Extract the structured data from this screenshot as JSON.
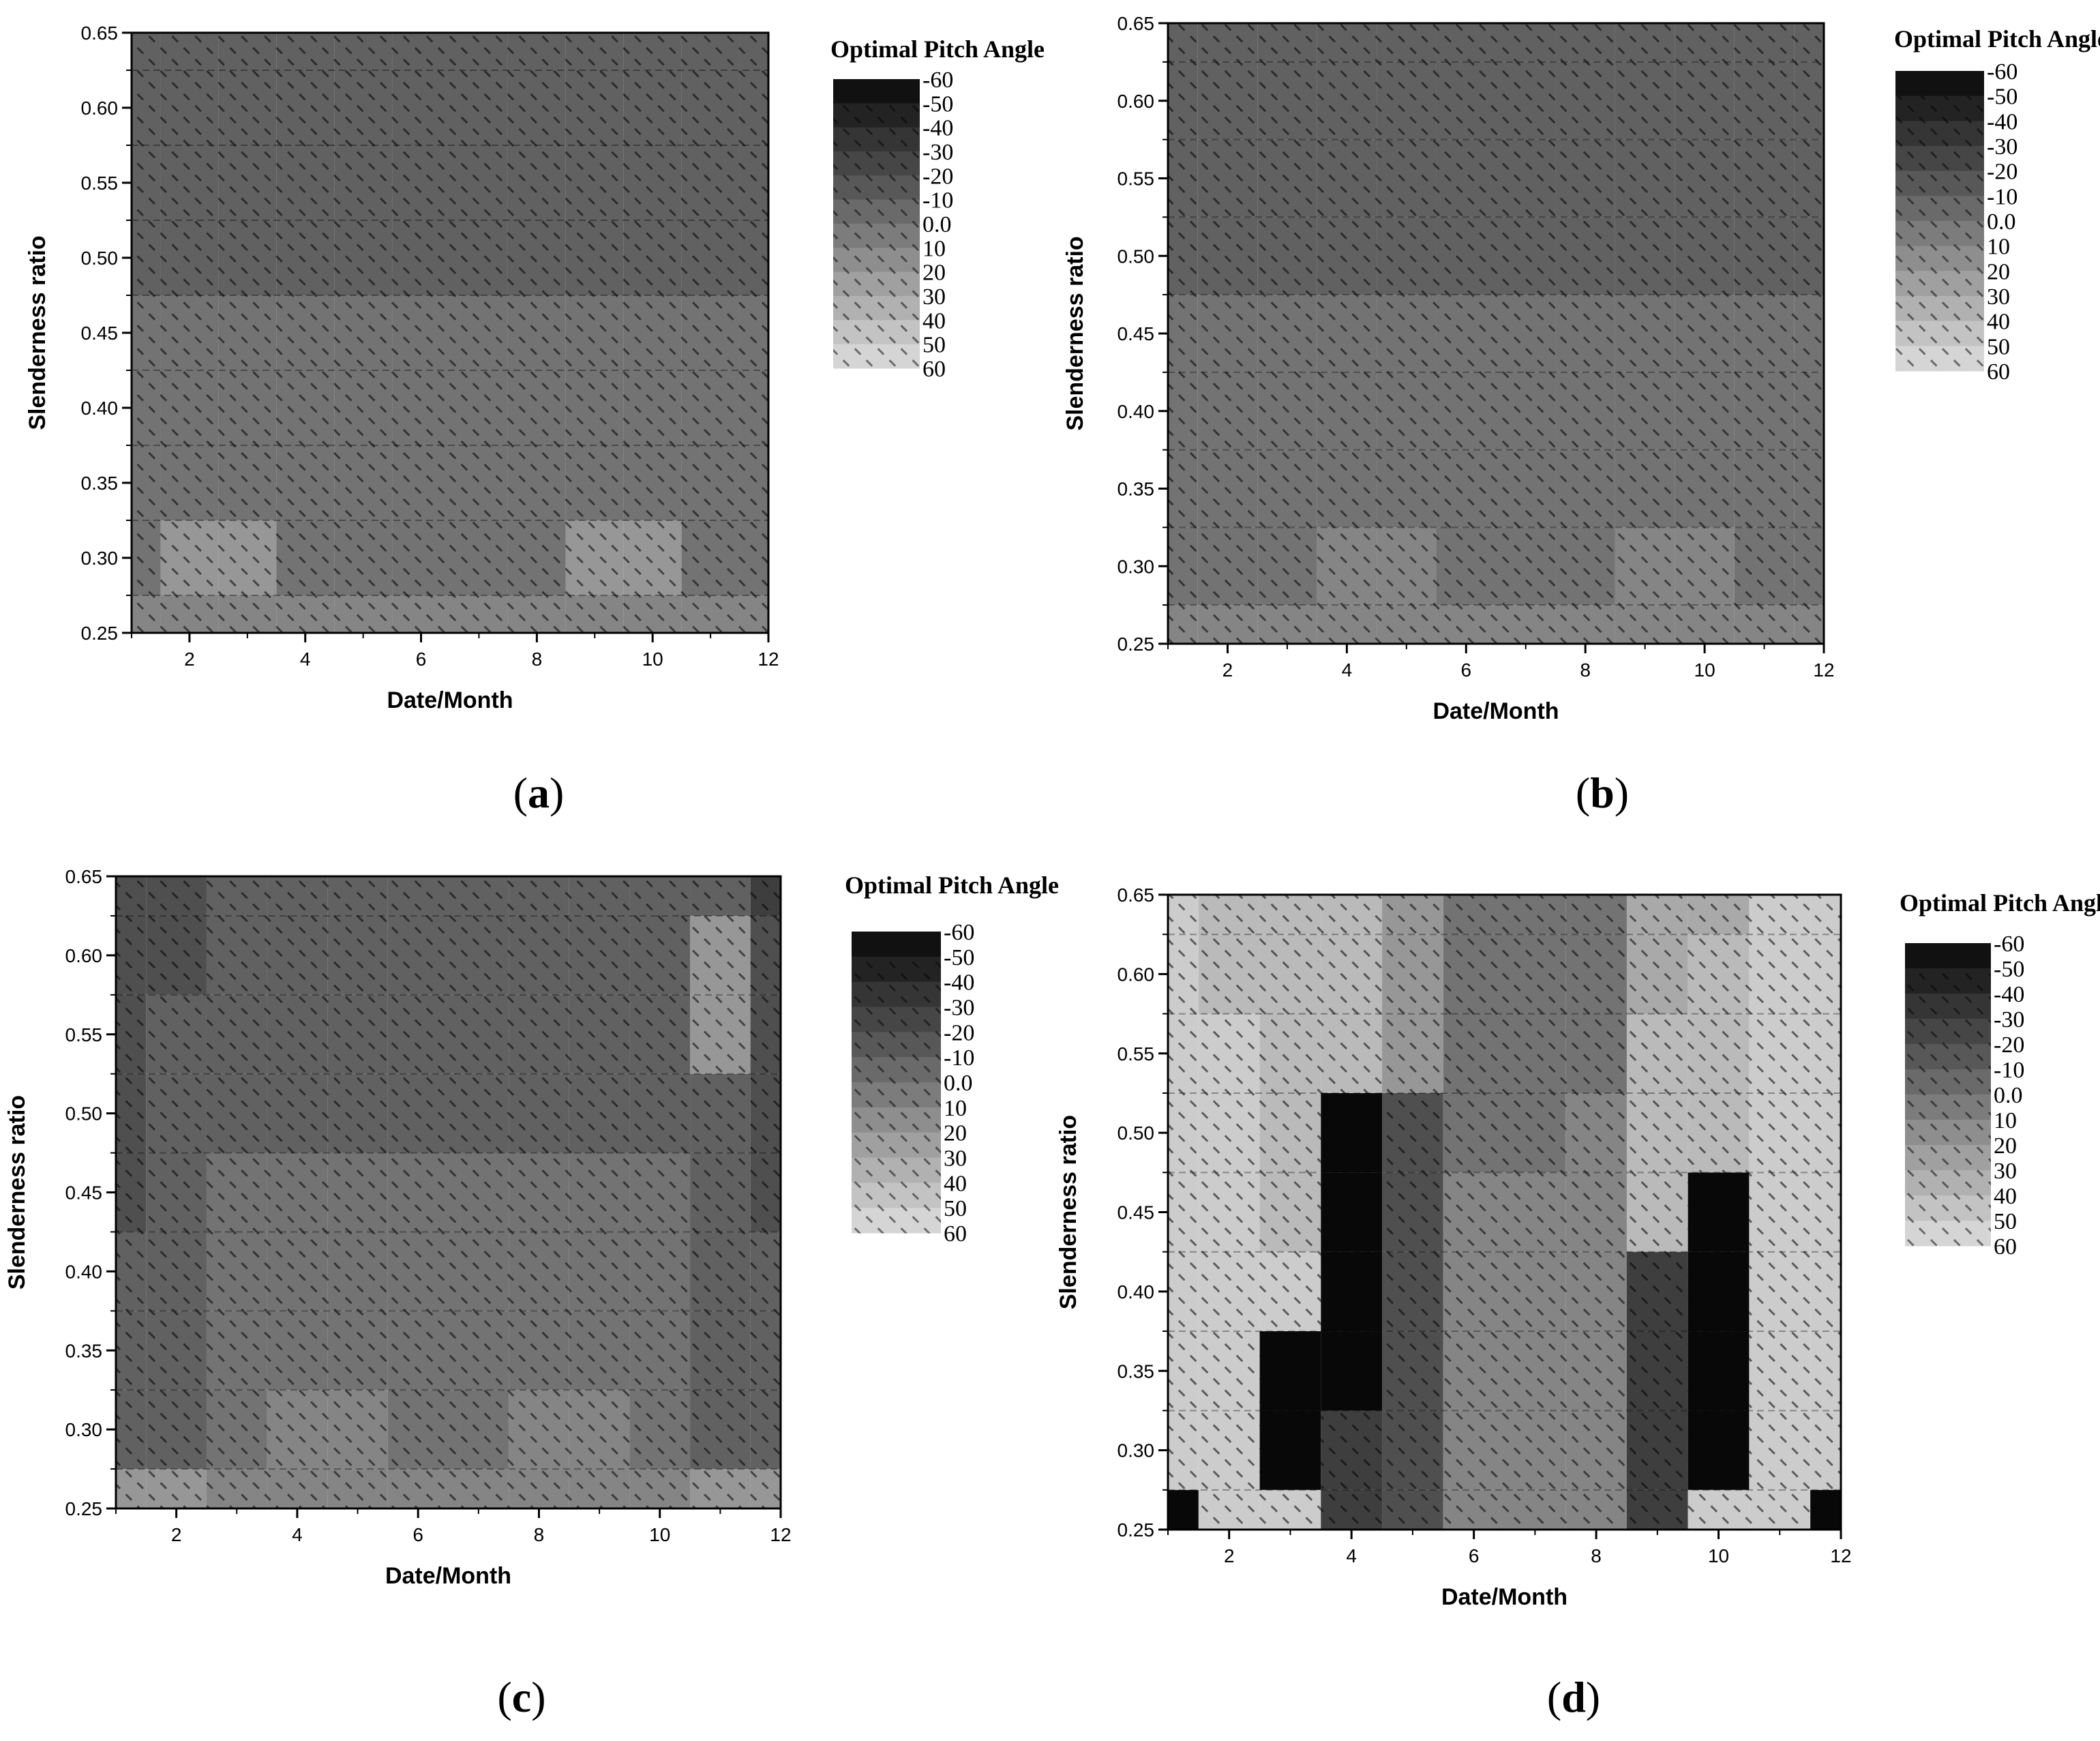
{
  "figure": {
    "panel_labels": [
      "(a)",
      "(b)",
      "(c)",
      "(d)"
    ],
    "legend_title": "Optimal Pitch Angle",
    "legend_levels": [
      -60,
      -50,
      -40,
      -30,
      -20,
      -10,
      0,
      10,
      20,
      30,
      40,
      50,
      60
    ],
    "legend_level_labels": [
      "-60",
      "-50",
      "-40",
      "-30",
      "-20",
      "-10",
      "0.0",
      "10",
      "20",
      "30",
      "40",
      "50",
      "60"
    ],
    "colors": {
      "darkest": "#050505",
      "lightest": "#dcdcdc",
      "hatch": "#000000",
      "axis": "#000000",
      "background": "#ffffff"
    }
  },
  "chart_data": [
    {
      "type": "heatmap",
      "panel": "(a)",
      "xlabel": "Date/Month",
      "ylabel": "Slenderness ratio",
      "legend_title": "Optimal Pitch Angle",
      "xlim": [
        1,
        12
      ],
      "ylim": [
        0.25,
        0.65
      ],
      "x_ticks": [
        2,
        4,
        6,
        8,
        10,
        12
      ],
      "y_ticks": [
        0.25,
        0.3,
        0.35,
        0.4,
        0.45,
        0.5,
        0.55,
        0.6,
        0.65
      ],
      "x": [
        1,
        2,
        3,
        4,
        5,
        6,
        7,
        8,
        9,
        10,
        11,
        12
      ],
      "y": [
        0.25,
        0.3,
        0.35,
        0.4,
        0.45,
        0.5,
        0.55,
        0.6,
        0.65
      ],
      "z": [
        [
          10,
          10,
          10,
          10,
          10,
          10,
          10,
          10,
          10,
          10,
          10,
          10
        ],
        [
          0,
          20,
          20,
          0,
          0,
          0,
          0,
          0,
          20,
          20,
          0,
          0
        ],
        [
          0,
          0,
          0,
          0,
          0,
          0,
          0,
          0,
          0,
          0,
          0,
          0
        ],
        [
          0,
          0,
          0,
          0,
          0,
          0,
          0,
          0,
          0,
          0,
          0,
          0
        ],
        [
          0,
          0,
          0,
          0,
          0,
          0,
          0,
          0,
          0,
          0,
          0,
          0
        ],
        [
          -10,
          -10,
          -10,
          -10,
          -10,
          -10,
          -10,
          -10,
          -10,
          -10,
          -10,
          -10
        ],
        [
          -10,
          -10,
          -10,
          -10,
          -10,
          -10,
          -10,
          -10,
          -10,
          -10,
          -10,
          -10
        ],
        [
          -10,
          -10,
          -10,
          -10,
          -10,
          -10,
          -10,
          -10,
          -10,
          -10,
          -10,
          -10
        ],
        [
          -10,
          -10,
          -10,
          -10,
          -10,
          -10,
          -10,
          -10,
          -10,
          -10,
          -10,
          -10
        ]
      ]
    },
    {
      "type": "heatmap",
      "panel": "(b)",
      "xlabel": "Date/Month",
      "ylabel": "Slenderness ratio",
      "legend_title": "Optimal Pitch Angle",
      "xlim": [
        1,
        12
      ],
      "ylim": [
        0.25,
        0.65
      ],
      "x_ticks": [
        2,
        4,
        6,
        8,
        10,
        12
      ],
      "y_ticks": [
        0.25,
        0.3,
        0.35,
        0.4,
        0.45,
        0.5,
        0.55,
        0.6,
        0.65
      ],
      "x": [
        1,
        2,
        3,
        4,
        5,
        6,
        7,
        8,
        9,
        10,
        11,
        12
      ],
      "y": [
        0.25,
        0.3,
        0.35,
        0.4,
        0.45,
        0.5,
        0.55,
        0.6,
        0.65
      ],
      "z": [
        [
          10,
          10,
          10,
          10,
          10,
          10,
          10,
          10,
          10,
          10,
          10,
          10
        ],
        [
          0,
          0,
          0,
          10,
          10,
          0,
          0,
          0,
          10,
          10,
          0,
          0
        ],
        [
          0,
          0,
          0,
          0,
          0,
          0,
          0,
          0,
          0,
          0,
          0,
          0
        ],
        [
          0,
          0,
          0,
          0,
          0,
          0,
          0,
          0,
          0,
          0,
          0,
          0
        ],
        [
          0,
          0,
          0,
          0,
          0,
          0,
          0,
          0,
          0,
          0,
          0,
          0
        ],
        [
          -10,
          -10,
          -10,
          -10,
          -10,
          -10,
          -10,
          -10,
          -10,
          -10,
          -10,
          -10
        ],
        [
          -10,
          -10,
          -10,
          -10,
          -10,
          -10,
          -10,
          -10,
          -10,
          -10,
          -10,
          -10
        ],
        [
          -10,
          -10,
          -10,
          -10,
          -10,
          -10,
          -10,
          -10,
          -10,
          -10,
          -10,
          -10
        ],
        [
          -10,
          -10,
          -10,
          -10,
          -10,
          -10,
          -10,
          -10,
          -10,
          -10,
          -10,
          -10
        ]
      ]
    },
    {
      "type": "heatmap",
      "panel": "(c)",
      "xlabel": "Date/Month",
      "ylabel": "Slenderness ratio",
      "legend_title": "Optimal Pitch Angle",
      "xlim": [
        1,
        12
      ],
      "ylim": [
        0.25,
        0.65
      ],
      "x_ticks": [
        2,
        4,
        6,
        8,
        10,
        12
      ],
      "y_ticks": [
        0.25,
        0.3,
        0.35,
        0.4,
        0.45,
        0.5,
        0.55,
        0.6,
        0.65
      ],
      "x": [
        1,
        2,
        3,
        4,
        5,
        6,
        7,
        8,
        9,
        10,
        11,
        12
      ],
      "y": [
        0.25,
        0.3,
        0.35,
        0.4,
        0.45,
        0.5,
        0.55,
        0.6,
        0.65
      ],
      "z": [
        [
          20,
          20,
          10,
          10,
          10,
          10,
          10,
          10,
          10,
          10,
          20,
          20
        ],
        [
          -10,
          -10,
          0,
          10,
          10,
          0,
          0,
          10,
          10,
          0,
          -10,
          -10
        ],
        [
          -10,
          -10,
          0,
          0,
          0,
          0,
          0,
          0,
          0,
          0,
          -10,
          -10
        ],
        [
          -10,
          -10,
          0,
          0,
          0,
          0,
          0,
          0,
          0,
          0,
          -10,
          -10
        ],
        [
          -20,
          -10,
          0,
          0,
          0,
          0,
          0,
          0,
          0,
          0,
          -10,
          -20
        ],
        [
          -20,
          -10,
          -10,
          -10,
          -10,
          -10,
          -10,
          -10,
          -10,
          -10,
          -10,
          -20
        ],
        [
          -20,
          -10,
          -10,
          -10,
          -10,
          -10,
          -10,
          -10,
          -10,
          -10,
          20,
          -20
        ],
        [
          -20,
          -20,
          -10,
          -10,
          -10,
          -10,
          -10,
          -10,
          -10,
          -10,
          20,
          -20
        ],
        [
          -20,
          -20,
          -10,
          -10,
          -10,
          -10,
          -10,
          -10,
          -10,
          -10,
          -10,
          -30
        ]
      ]
    },
    {
      "type": "heatmap",
      "panel": "(d)",
      "xlabel": "Date/Month",
      "ylabel": "Slenderness ratio",
      "legend_title": "Optimal Pitch Angle",
      "xlim": [
        1,
        12
      ],
      "ylim": [
        0.25,
        0.65
      ],
      "x_ticks": [
        2,
        4,
        6,
        8,
        10,
        12
      ],
      "y_ticks": [
        0.25,
        0.3,
        0.35,
        0.4,
        0.45,
        0.5,
        0.55,
        0.6,
        0.65
      ],
      "x": [
        1,
        2,
        3,
        4,
        5,
        6,
        7,
        8,
        9,
        10,
        11,
        12
      ],
      "y": [
        0.25,
        0.3,
        0.35,
        0.4,
        0.45,
        0.5,
        0.55,
        0.6,
        0.65
      ],
      "z": [
        [
          -60,
          50,
          50,
          -30,
          -20,
          10,
          10,
          10,
          -30,
          50,
          50,
          -60
        ],
        [
          50,
          50,
          -60,
          -30,
          -20,
          10,
          10,
          10,
          -30,
          -60,
          50,
          50
        ],
        [
          50,
          50,
          -60,
          -60,
          -20,
          10,
          10,
          10,
          -30,
          -60,
          50,
          50
        ],
        [
          50,
          50,
          50,
          -60,
          -20,
          10,
          10,
          10,
          -30,
          -60,
          50,
          50
        ],
        [
          50,
          50,
          40,
          -60,
          -20,
          10,
          10,
          10,
          40,
          -60,
          50,
          50
        ],
        [
          50,
          50,
          40,
          -60,
          -20,
          0,
          0,
          10,
          40,
          40,
          50,
          50
        ],
        [
          50,
          50,
          40,
          40,
          20,
          0,
          0,
          0,
          40,
          40,
          50,
          50
        ],
        [
          50,
          40,
          40,
          40,
          20,
          0,
          0,
          0,
          30,
          40,
          50,
          50
        ],
        [
          50,
          40,
          40,
          40,
          20,
          0,
          0,
          0,
          30,
          30,
          50,
          50
        ]
      ]
    }
  ]
}
